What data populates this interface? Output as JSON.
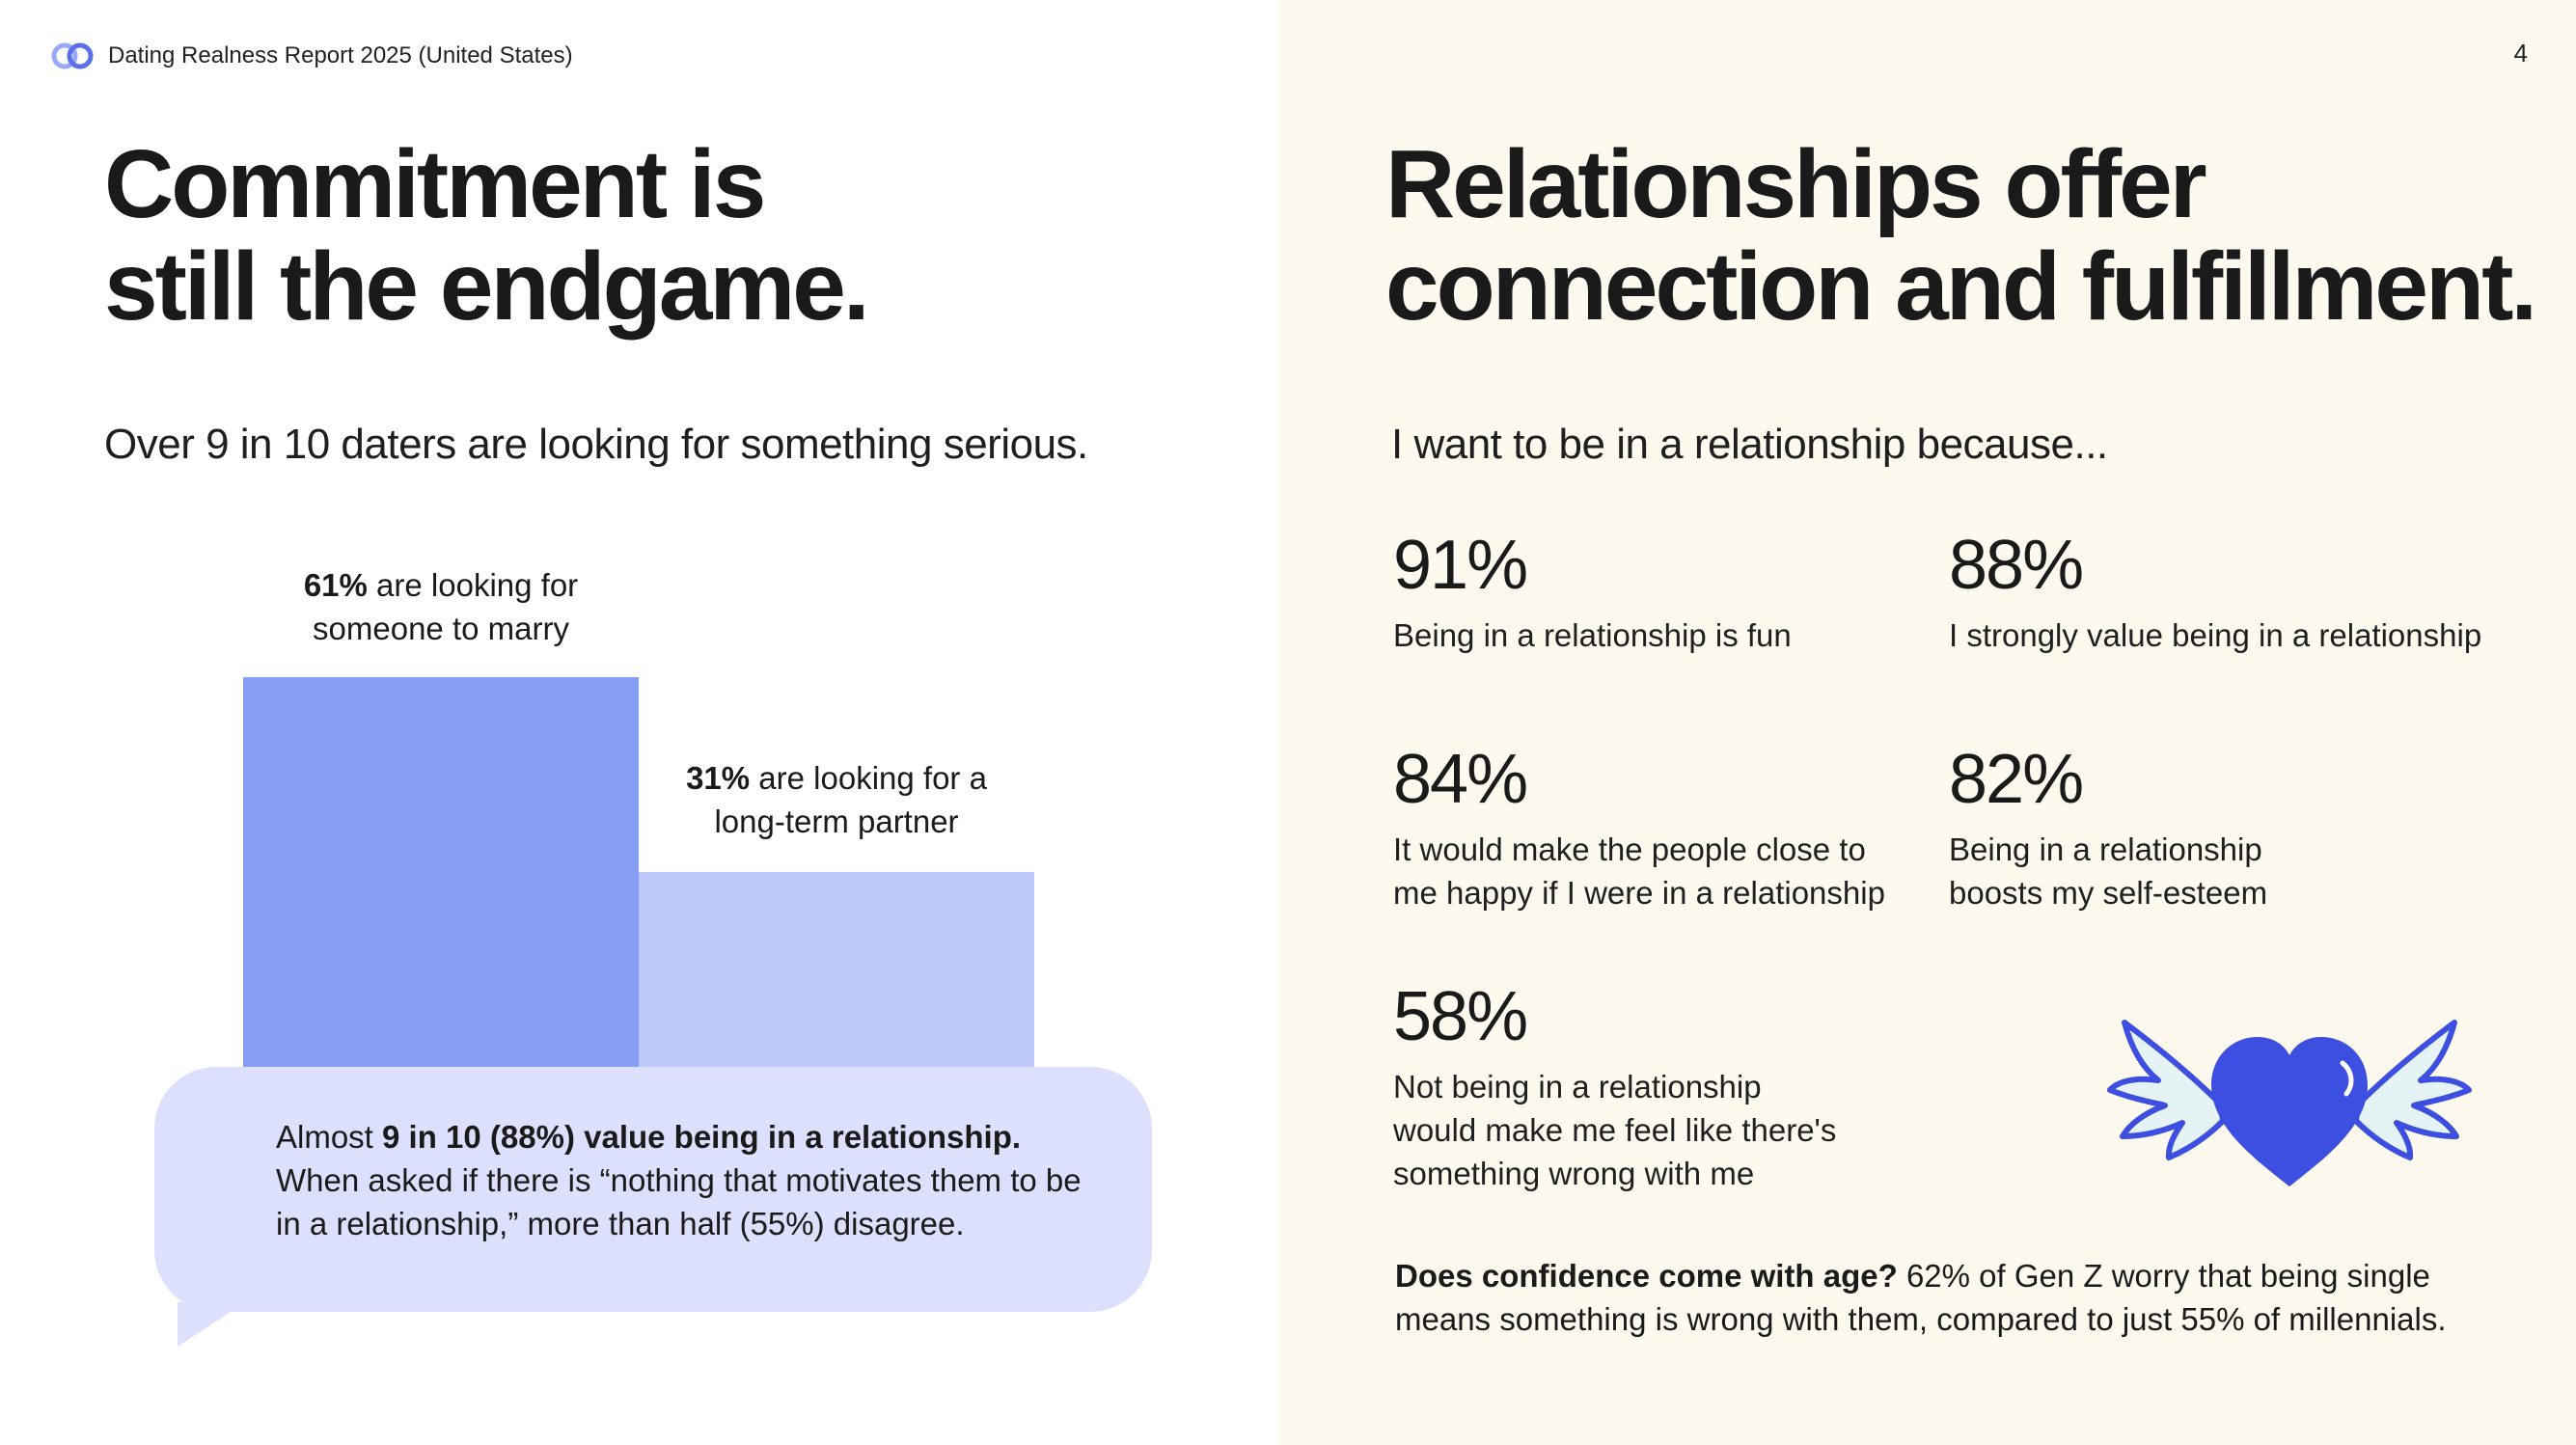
{
  "header": {
    "report_title": "Dating Realness Report 2025 (United States)",
    "logo_icon": "linked-rings-logo-icon",
    "page_number": "4"
  },
  "left": {
    "headline_line1": "Commitment is",
    "headline_line2": "still the endgame.",
    "subhead": "Over 9 in 10 daters are looking for something serious.",
    "bars": [
      {
        "pct_label": "61%",
        "text_line1": " are looking for",
        "text_line2": "someone to marry",
        "value": 61,
        "color": "#869ef3"
      },
      {
        "pct_label": "31%",
        "text_line1": " are looking for a",
        "text_line2": "long-term partner",
        "value": 31,
        "color": "#bcc7fa"
      }
    ],
    "bubble": {
      "lead": "Almost ",
      "bold": "9 in 10 (88%) value being in a relationship.",
      "rest": "When asked if there is “nothing that motivates them to be in a relationship,” more than half (55%) disagree."
    }
  },
  "right": {
    "headline_line1": "Relationships offer",
    "headline_line2": "connection and fulfillment.",
    "subhead": "I want to be in a relationship because...",
    "stats": [
      {
        "value": "91%",
        "label_lines": [
          "Being in a relationship is fun"
        ]
      },
      {
        "value": "88%",
        "label_lines": [
          "I strongly value being in a relationship"
        ]
      },
      {
        "value": "84%",
        "label_lines": [
          "It would make the people close to",
          "me happy if I were in a relationship"
        ]
      },
      {
        "value": "82%",
        "label_lines": [
          "Being in a relationship",
          "boosts my self-esteem"
        ]
      },
      {
        "value": "58%",
        "label_lines": [
          "Not being in a relationship",
          "would make me feel like there's",
          "something wrong with me"
        ]
      }
    ],
    "illustration_icon": "winged-heart-icon",
    "footnote": {
      "bold": "Does confidence come with age?",
      "rest": " 62% of Gen Z worry that being single means something is wrong with them, compared to just 55% of millennials."
    }
  },
  "colors": {
    "right_panel_bg": "#fdf9ee",
    "bar_primary": "#869ef3",
    "bar_secondary": "#bcc7fa",
    "bubble_bg": "#dde0fd",
    "heart": "#3d4fe0"
  }
}
